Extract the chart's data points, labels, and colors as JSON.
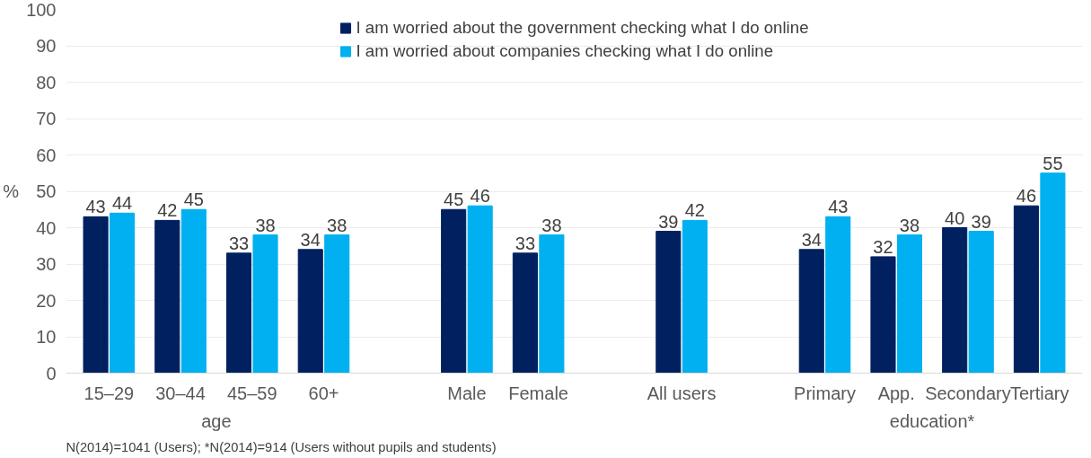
{
  "chart_data": {
    "type": "bar",
    "ylabel": "%",
    "categories": [
      "15–29",
      "30–44",
      "45–59",
      "60+",
      null,
      "Male",
      "Female",
      null,
      "All users",
      null,
      "Primary",
      "App.",
      "Secondary",
      "Tertiary"
    ],
    "series": [
      {
        "name": "I am worried about the government checking what I do online",
        "color": "#002060",
        "values": [
          43,
          42,
          33,
          34,
          null,
          45,
          33,
          null,
          39,
          null,
          34,
          32,
          40,
          46
        ]
      },
      {
        "name": "I am worried about companies checking what I do online",
        "color": "#00b0f0",
        "values": [
          44,
          45,
          38,
          38,
          null,
          46,
          38,
          null,
          42,
          null,
          43,
          38,
          39,
          55
        ]
      }
    ],
    "ylim": [
      0,
      100
    ],
    "yticks": [
      0,
      10,
      20,
      30,
      40,
      50,
      60,
      70,
      80,
      90,
      100
    ],
    "grid": "y",
    "legend": "top",
    "data_labels": true,
    "annotations": [
      "age",
      "education*",
      "N(2014)=1041 (Users); *N(2014)=914 (Users without pupils and students)"
    ]
  }
}
